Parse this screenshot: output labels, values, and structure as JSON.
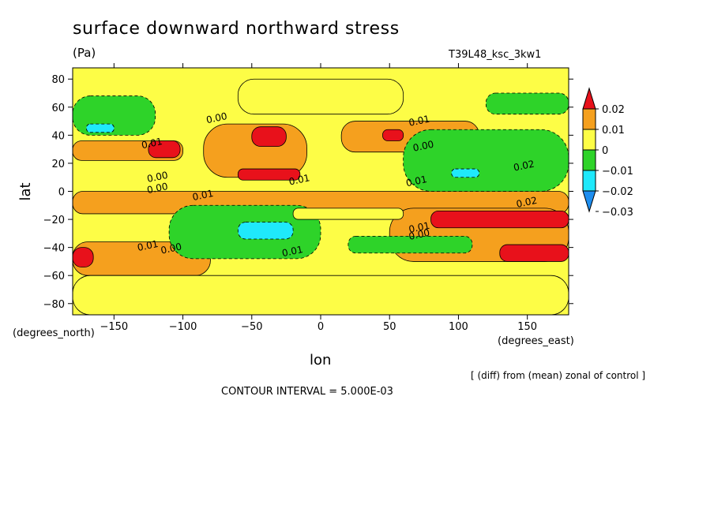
{
  "chart_data": {
    "type": "heatmap",
    "title": "surface downward northward stress",
    "units": "(Pa)",
    "run_id": "T39L48_ksc_3kw1",
    "xlabel": "lon",
    "ylabel": "lat",
    "x_units_label": "(degrees_east)",
    "y_units_label": "(degrees_north)",
    "xlim": [
      -180,
      180
    ],
    "ylim": [
      -88,
      88
    ],
    "x_ticks": [
      -150,
      -100,
      -50,
      0,
      50,
      100,
      150
    ],
    "x_tick_labels": [
      "−150",
      "−100",
      "−50",
      "0",
      "50",
      "100",
      "150"
    ],
    "y_ticks": [
      80,
      60,
      40,
      20,
      0,
      -20,
      -40,
      -60,
      -80
    ],
    "y_tick_labels": [
      "80",
      "60",
      "40",
      "20",
      "0",
      "−20",
      "−40",
      "−60",
      "−80"
    ],
    "colorbar": {
      "levels": [
        0.02,
        0.01,
        0,
        -0.01,
        -0.02,
        -0.03
      ],
      "labels": [
        "0.02",
        "0.01",
        "0",
        "−0.01",
        "−0.02",
        "−0.03"
      ],
      "colors": [
        "#e8111b",
        "#f5a01e",
        "#fdfd46",
        "#2ed329",
        "#1fe9fb",
        "#1e8ef0",
        "#1e5fe0"
      ]
    },
    "contour_labels": [
      {
        "text": "0.00",
        "lon": -75,
        "lat": 50
      },
      {
        "text": "0.01",
        "lon": -122,
        "lat": 32
      },
      {
        "text": "0.00",
        "lon": -118,
        "lat": 8
      },
      {
        "text": "0.00",
        "lon": -118,
        "lat": 0
      },
      {
        "text": "0.01",
        "lon": -15,
        "lat": 6
      },
      {
        "text": "0.01",
        "lon": 72,
        "lat": 48
      },
      {
        "text": "0.00",
        "lon": 75,
        "lat": 30
      },
      {
        "text": "0.02",
        "lon": 148,
        "lat": 16
      },
      {
        "text": "0.01",
        "lon": 70,
        "lat": 5
      },
      {
        "text": "0.01",
        "lon": -85,
        "lat": -5
      },
      {
        "text": "0.02",
        "lon": 150,
        "lat": -10
      },
      {
        "text": "0.01",
        "lon": 72,
        "lat": -28
      },
      {
        "text": "0.00",
        "lon": 72,
        "lat": -33
      },
      {
        "text": "0.01",
        "lon": -125,
        "lat": -41
      },
      {
        "text": "0.00",
        "lon": -108,
        "lat": -43
      },
      {
        "text": "0.01",
        "lon": -20,
        "lat": -45
      }
    ],
    "regions": [
      {
        "level": 0.005,
        "lon": [
          -180,
          -100
        ],
        "lat": [
          22,
          36
        ]
      },
      {
        "level": 0.005,
        "lon": [
          -85,
          -10
        ],
        "lat": [
          10,
          48
        ]
      },
      {
        "level": 0.005,
        "lon": [
          15,
          115
        ],
        "lat": [
          28,
          50
        ]
      },
      {
        "level": 0.005,
        "lon": [
          -180,
          180
        ],
        "lat": [
          -16,
          0
        ]
      },
      {
        "level": 0.005,
        "lon": [
          -180,
          -80
        ],
        "lat": [
          -60,
          -36
        ]
      },
      {
        "level": 0.005,
        "lon": [
          50,
          180
        ],
        "lat": [
          -50,
          -12
        ]
      },
      {
        "level": 0.015,
        "lon": [
          -125,
          -102
        ],
        "lat": [
          24,
          36
        ]
      },
      {
        "level": 0.015,
        "lon": [
          -50,
          -25
        ],
        "lat": [
          32,
          46
        ]
      },
      {
        "level": 0.015,
        "lon": [
          -60,
          -15
        ],
        "lat": [
          8,
          16
        ]
      },
      {
        "level": 0.015,
        "lon": [
          45,
          60
        ],
        "lat": [
          36,
          44
        ]
      },
      {
        "level": 0.015,
        "lon": [
          80,
          180
        ],
        "lat": [
          -26,
          -14
        ]
      },
      {
        "level": 0.015,
        "lon": [
          130,
          180
        ],
        "lat": [
          -50,
          -38
        ]
      },
      {
        "level": 0.015,
        "lon": [
          -180,
          -165
        ],
        "lat": [
          -54,
          -40
        ]
      },
      {
        "level": -0.005,
        "lon": [
          -110,
          0
        ],
        "lat": [
          -48,
          -10
        ]
      },
      {
        "level": -0.005,
        "lon": [
          20,
          110
        ],
        "lat": [
          -44,
          -32
        ]
      },
      {
        "level": -0.005,
        "lon": [
          60,
          180
        ],
        "lat": [
          0,
          44
        ]
      },
      {
        "level": -0.005,
        "lon": [
          -180,
          -120
        ],
        "lat": [
          40,
          68
        ]
      },
      {
        "level": -0.005,
        "lon": [
          120,
          180
        ],
        "lat": [
          55,
          70
        ]
      },
      {
        "level": -0.015,
        "lon": [
          -60,
          -20
        ],
        "lat": [
          -34,
          -22
        ]
      },
      {
        "level": -0.015,
        "lon": [
          95,
          115
        ],
        "lat": [
          10,
          16
        ]
      },
      {
        "level": -0.015,
        "lon": [
          -170,
          -150
        ],
        "lat": [
          42,
          48
        ]
      },
      {
        "level": 0.0,
        "lon": [
          -180,
          180
        ],
        "lat": [
          -88,
          -60
        ]
      },
      {
        "level": 0.0,
        "lon": [
          -60,
          60
        ],
        "lat": [
          55,
          80
        ]
      },
      {
        "level": 0.0,
        "lon": [
          -20,
          60
        ],
        "lat": [
          -20,
          -12
        ]
      }
    ],
    "grid": false,
    "legend": "right"
  },
  "footer": {
    "note": "[ (diff) from (mean) zonal of control ]",
    "contour_interval": "CONTOUR INTERVAL = 5.000E-03"
  }
}
